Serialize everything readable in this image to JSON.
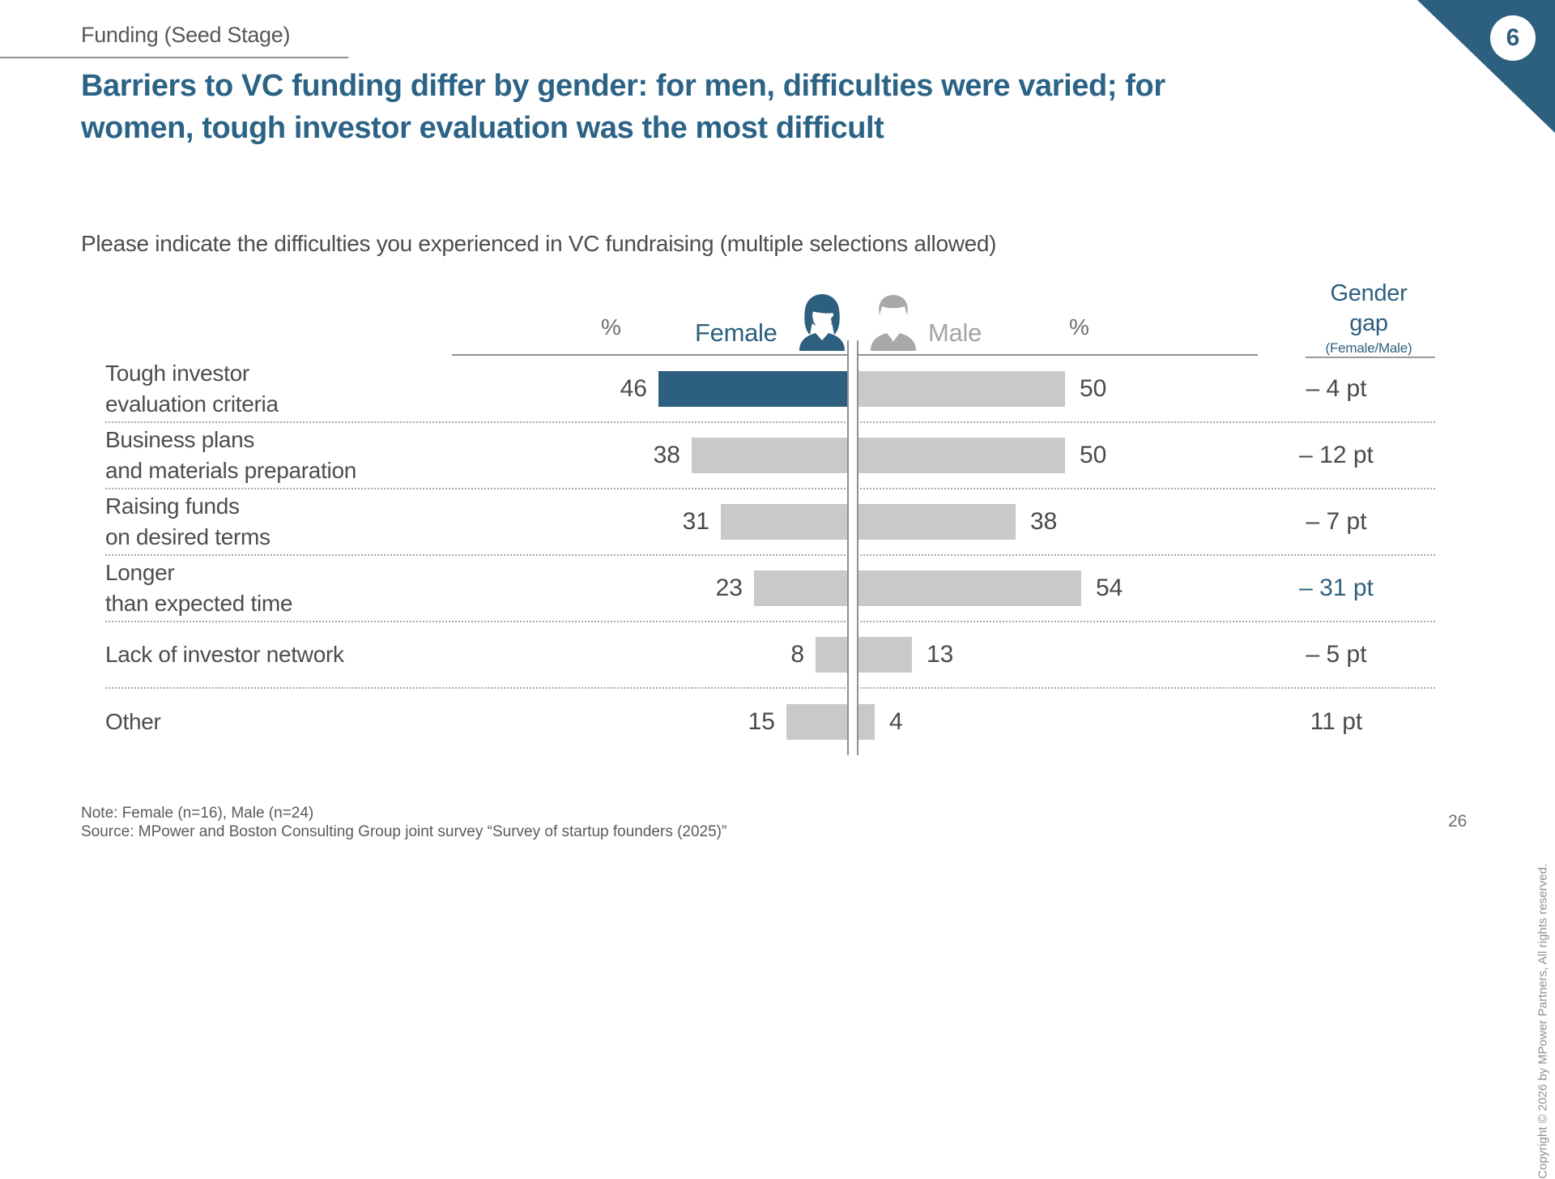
{
  "slide": {
    "eyebrow": "Funding (Seed Stage)",
    "page_badge": "6",
    "title": "Barriers to VC funding differ by gender: for men, difficulties were varied; for women, tough investor evaluation was the most difficult",
    "question": "Please indicate the difficulties you experienced in VC fundraising (multiple selections allowed)",
    "note": "Note: Female (n=16), Male (n=24)",
    "source": "Source: MPower and Boston Consulting Group joint survey “Survey of startup founders (2025)”",
    "page_number": "26",
    "copyright": "Copyright © 2026 by MPower Partners, All rights reserved."
  },
  "chart": {
    "left_pct": "%",
    "right_pct": "%",
    "female_label": "Female",
    "male_label": "Male",
    "gap_header_line1": "Gender",
    "gap_header_line2": "gap",
    "gap_header_sub": "(Female/Male)",
    "icons": {
      "female": "female-avatar-icon",
      "male": "male-avatar-icon"
    },
    "rows": [
      {
        "label_line1": "Tough investor",
        "label_line2": "evaluation criteria",
        "female": "46",
        "male": "50",
        "gap": "– 4 pt"
      },
      {
        "label_line1": "Business plans",
        "label_line2": "and materials preparation",
        "female": "38",
        "male": "50",
        "gap": "– 12 pt"
      },
      {
        "label_line1": "Raising funds",
        "label_line2": "on desired terms",
        "female": "31",
        "male": "38",
        "gap": "– 7 pt"
      },
      {
        "label_line1": "Longer",
        "label_line2": "than expected time",
        "female": "23",
        "male": "54",
        "gap": "– 31 pt"
      },
      {
        "label_line1": "Lack of investor network",
        "label_line2": "",
        "female": "8",
        "male": "13",
        "gap": "– 5 pt"
      },
      {
        "label_line1": "Other",
        "label_line2": "",
        "female": "15",
        "male": "4",
        "gap": "11 pt"
      }
    ]
  },
  "colors": {
    "accent_teal": "#2d5f7e",
    "title_teal": "#2b6386",
    "bar_gray": "#c9c9c9",
    "text_gray": "#4d4d4d",
    "male_label_gray": "#a3a3a3"
  },
  "chart_data": {
    "type": "bar",
    "subtype": "diverging-butterfly",
    "title": "Please indicate the difficulties you experienced in VC fundraising (multiple selections allowed)",
    "unit": "%",
    "categories": [
      "Tough investor evaluation criteria",
      "Business plans and materials preparation",
      "Raising funds on desired terms",
      "Longer than expected time",
      "Lack of investor network",
      "Other"
    ],
    "series": [
      {
        "name": "Female",
        "values": [
          46,
          38,
          31,
          23,
          8,
          15
        ]
      },
      {
        "name": "Male",
        "values": [
          50,
          50,
          38,
          54,
          13,
          4
        ]
      }
    ],
    "gender_gap_pt": [
      -4,
      -12,
      -7,
      -31,
      -5,
      11
    ],
    "xlim": [
      0,
      100
    ],
    "grid": false,
    "legend_position": "top-center",
    "highlight": {
      "female_bar_category": "Tough investor evaluation criteria",
      "gap_category": "Longer than expected time"
    }
  }
}
